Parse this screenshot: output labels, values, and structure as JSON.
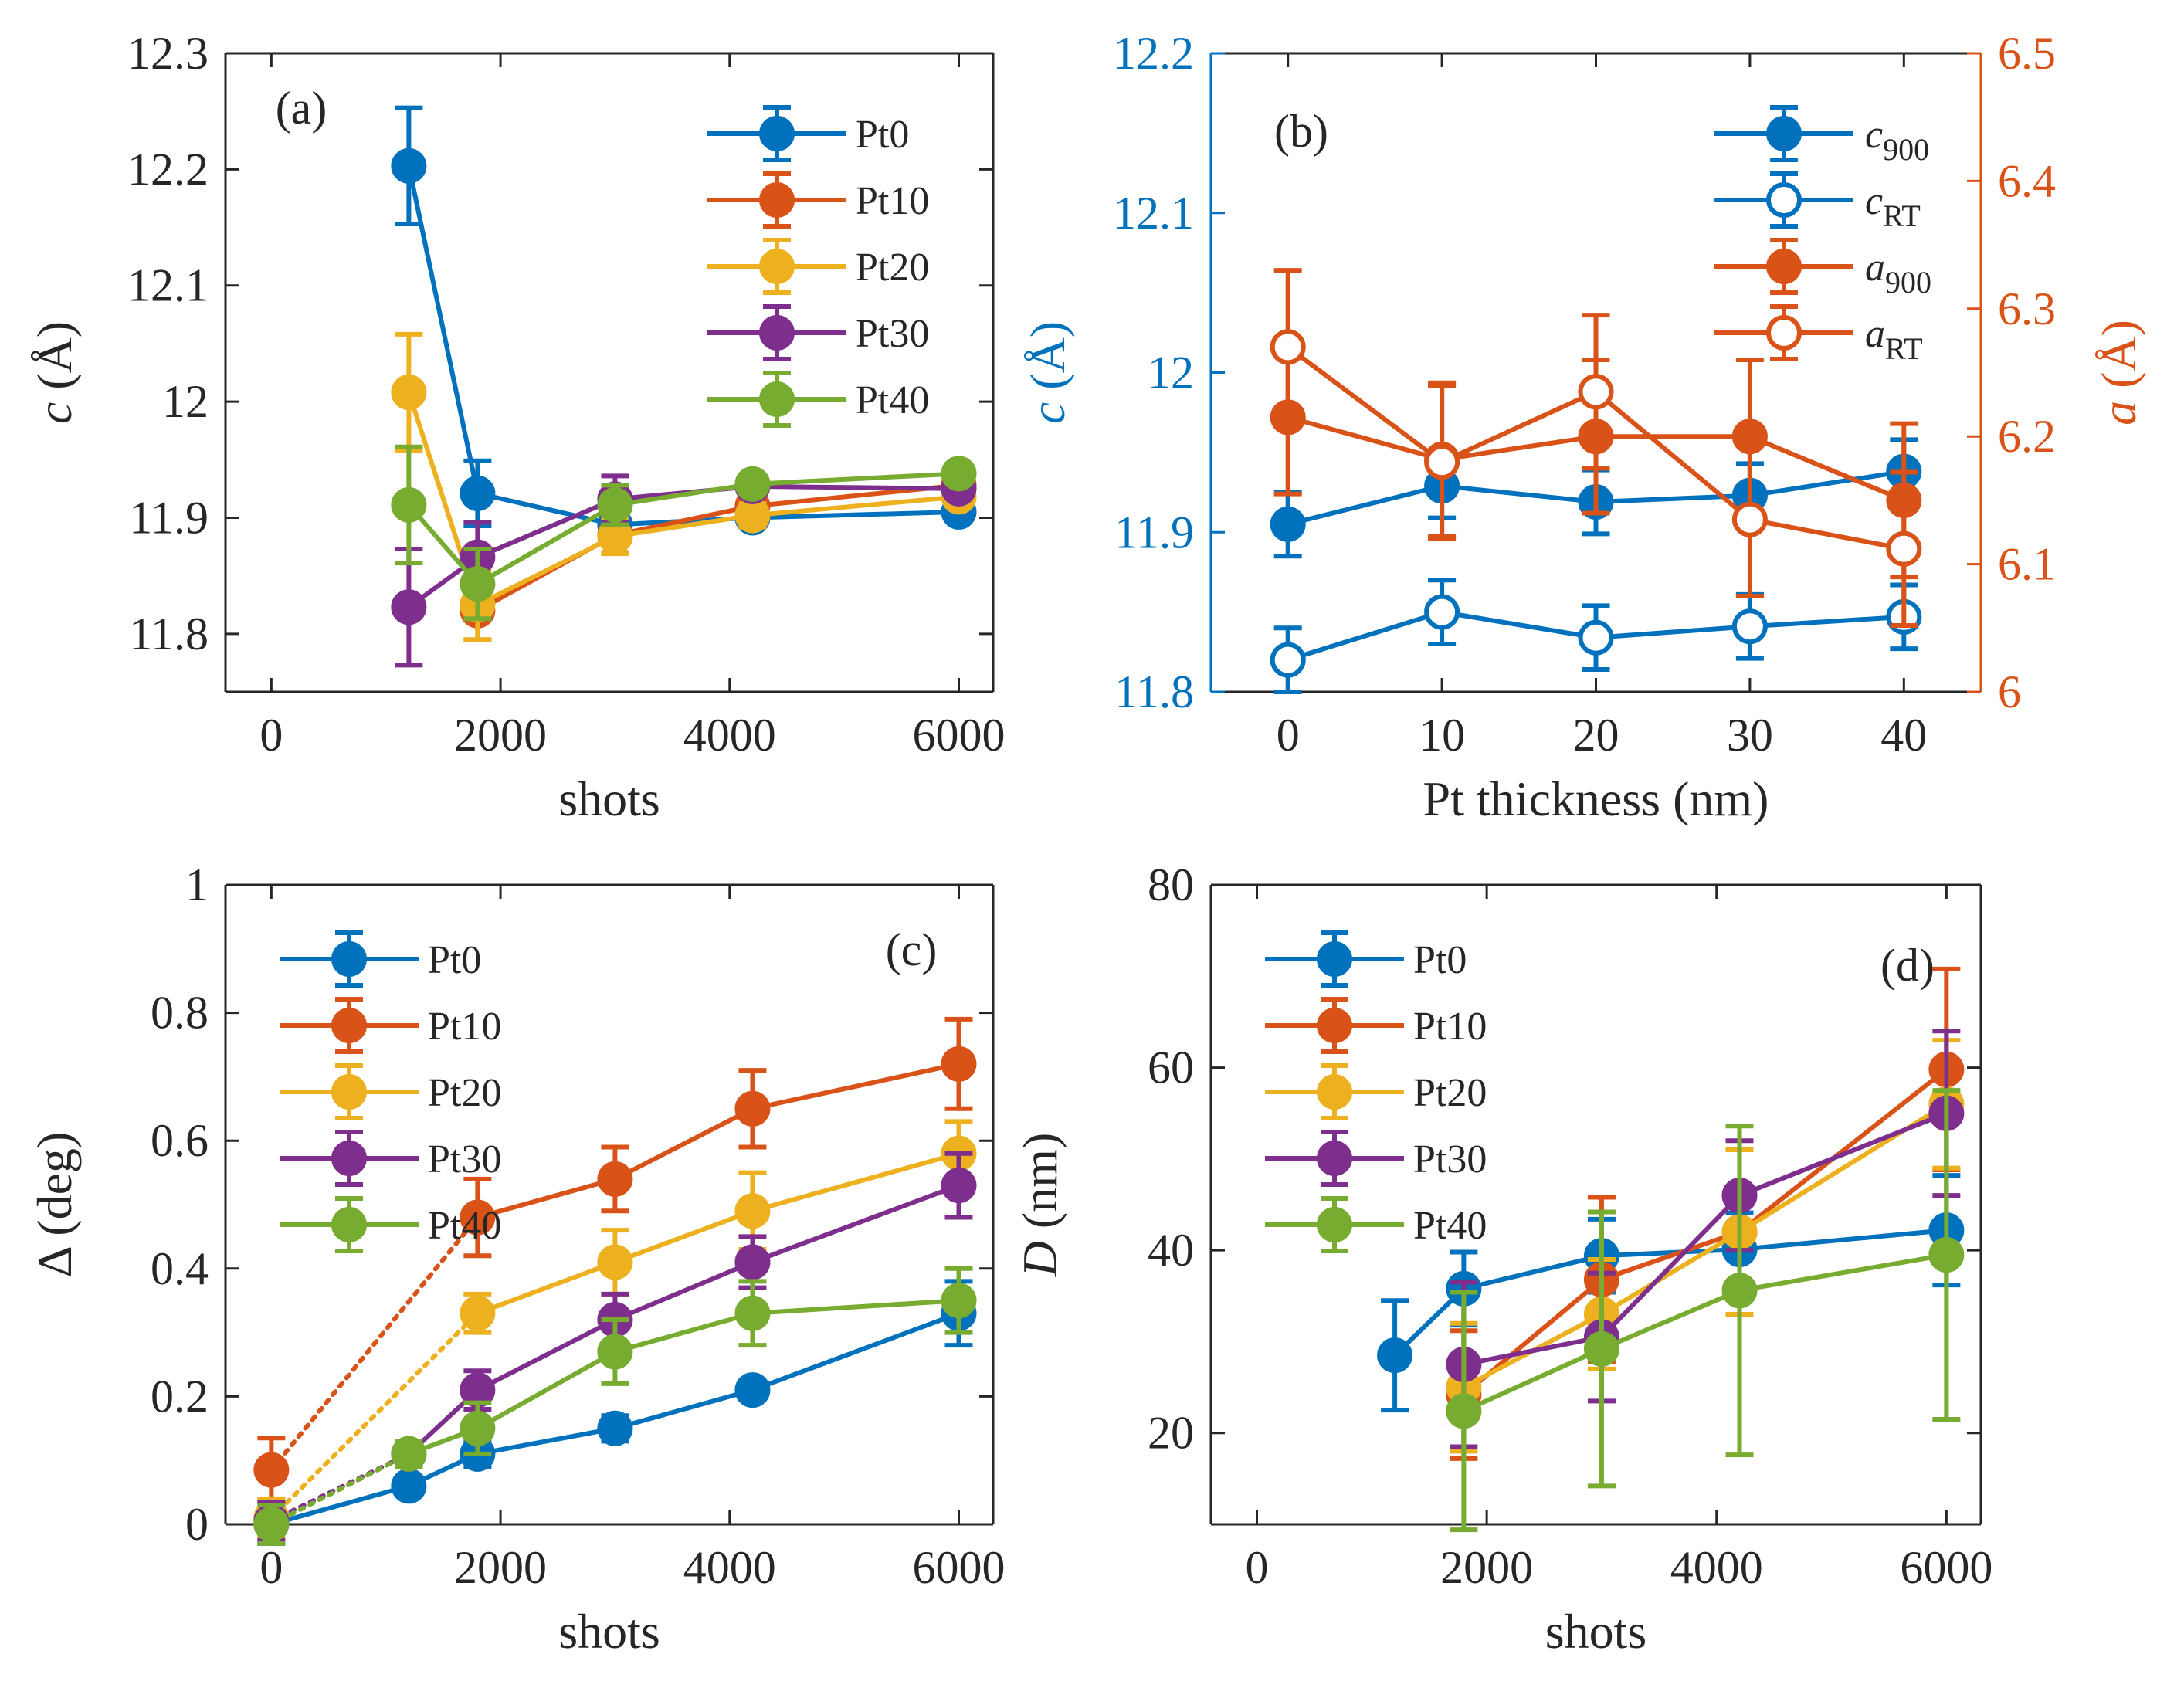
{
  "colors": {
    "Pt0": "#0072BD",
    "Pt10": "#D95319",
    "Pt20": "#EDB120",
    "Pt30": "#7E2F8E",
    "Pt40": "#77AC30",
    "axis": "#262626"
  },
  "chart_data": [
    {
      "id": "a",
      "type": "line",
      "panel_label": "(a)",
      "xlabel": "shots",
      "ylabel_var": "c",
      "ylabel_unit": " (Å)",
      "xlim": [
        -400,
        6300
      ],
      "ylim": [
        11.75,
        12.3
      ],
      "xticks": [
        0,
        2000,
        4000,
        6000
      ],
      "xtick_labels": [
        "0",
        "2000",
        "4000",
        "6000"
      ],
      "yticks": [
        11.8,
        11.9,
        12,
        12.1,
        12.2,
        12.3
      ],
      "ytick_labels": [
        "11.8",
        "11.9",
        "12",
        "12.1",
        "12.2",
        "12.3"
      ],
      "legend": {
        "position": "top-right",
        "entries": [
          "Pt0",
          "Pt10",
          "Pt20",
          "Pt30",
          "Pt40"
        ]
      },
      "series": [
        {
          "name": "Pt0",
          "x": [
            1200,
            1800,
            3000,
            4200,
            6000
          ],
          "y": [
            12.203,
            11.921,
            11.894,
            11.9,
            11.905
          ],
          "err": [
            0.05,
            0.028,
            0.015,
            0.007,
            0.007
          ]
        },
        {
          "name": "Pt10",
          "x": [
            1800,
            3000,
            4200,
            6000
          ],
          "y": [
            11.82,
            11.885,
            11.91,
            11.928
          ],
          "err": [
            0.025,
            0.015,
            0.007,
            0.007
          ]
        },
        {
          "name": "Pt20",
          "x": [
            1200,
            1800,
            3000,
            4200,
            6000
          ],
          "y": [
            12.008,
            11.825,
            11.884,
            11.902,
            11.918
          ],
          "err": [
            0.05,
            0.03,
            0.015,
            0.01,
            0.008
          ]
        },
        {
          "name": "Pt30",
          "x": [
            1200,
            1800,
            3000,
            4200,
            6000
          ],
          "y": [
            11.823,
            11.866,
            11.916,
            11.927,
            11.925
          ],
          "err": [
            0.05,
            0.03,
            0.02,
            0.007,
            0.007
          ]
        },
        {
          "name": "Pt40",
          "x": [
            1200,
            1800,
            3000,
            4200,
            6000
          ],
          "y": [
            11.911,
            11.843,
            11.911,
            11.929,
            11.938
          ],
          "err": [
            0.05,
            0.03,
            0.017,
            0.008,
            0.008
          ]
        }
      ]
    },
    {
      "id": "b",
      "type": "line",
      "panel_label": "(b)",
      "xlabel": "Pt thickness (nm)",
      "ylabel_var": "c",
      "ylabel_unit": " (Å)",
      "ylabel_right_var": "a",
      "ylabel_right_unit": " (Å)",
      "xlim": [
        -5,
        45
      ],
      "ylim": [
        11.8,
        12.2
      ],
      "ylim_right": [
        6.0,
        6.5
      ],
      "xticks": [
        0,
        10,
        20,
        30,
        40
      ],
      "xtick_labels": [
        "0",
        "10",
        "20",
        "30",
        "40"
      ],
      "yticks": [
        11.8,
        11.9,
        12,
        12.1,
        12.2
      ],
      "ytick_labels": [
        "11.8",
        "11.9",
        "12",
        "12.1",
        "12.2"
      ],
      "yticks_right": [
        6.0,
        6.1,
        6.2,
        6.3,
        6.4,
        6.5
      ],
      "ytick_labels_right": [
        "6",
        "6.1",
        "6.2",
        "6.3",
        "6.4",
        "6.5"
      ],
      "legend": {
        "position": "top-right",
        "entries": [
          {
            "var": "c",
            "sub": "900"
          },
          {
            "var": "c",
            "sub": "RT"
          },
          {
            "var": "a",
            "sub": "900"
          },
          {
            "var": "a",
            "sub": "RT"
          }
        ]
      },
      "series": [
        {
          "name": "c900",
          "axis": "left",
          "color": "#0072BD",
          "filled": true,
          "x": [
            0,
            10,
            20,
            30,
            40
          ],
          "y": [
            11.905,
            11.929,
            11.919,
            11.923,
            11.938
          ],
          "err": [
            0.02,
            0.02,
            0.02,
            0.02,
            0.02
          ]
        },
        {
          "name": "cRT",
          "axis": "left",
          "color": "#0072BD",
          "filled": false,
          "x": [
            0,
            10,
            20,
            30,
            40
          ],
          "y": [
            11.82,
            11.85,
            11.834,
            11.841,
            11.847
          ],
          "err": [
            0.02,
            0.02,
            0.02,
            0.02,
            0.02
          ]
        },
        {
          "name": "a900",
          "axis": "right",
          "color": "#D95319",
          "filled": true,
          "x": [
            0,
            10,
            20,
            30,
            40
          ],
          "y": [
            6.215,
            6.182,
            6.2,
            6.2,
            6.15
          ],
          "err": [
            0.06,
            0.06,
            0.06,
            0.06,
            0.06
          ]
        },
        {
          "name": "aRT",
          "axis": "right",
          "color": "#D95319",
          "filled": false,
          "x": [
            0,
            10,
            20,
            30,
            40
          ],
          "y": [
            6.27,
            6.18,
            6.235,
            6.135,
            6.112
          ],
          "err": [
            0.06,
            0.06,
            0.06,
            0.06,
            0.06
          ]
        }
      ]
    },
    {
      "id": "c",
      "type": "line",
      "panel_label": "(c)",
      "xlabel": "shots",
      "ylabel_var": "Δ",
      "ylabel_unit": " (deg)",
      "xlim": [
        -400,
        6300
      ],
      "ylim": [
        0,
        1
      ],
      "xticks": [
        0,
        2000,
        4000,
        6000
      ],
      "xtick_labels": [
        "0",
        "2000",
        "4000",
        "6000"
      ],
      "yticks": [
        0,
        0.2,
        0.4,
        0.6,
        0.8,
        1
      ],
      "ytick_labels": [
        "0",
        "0.2",
        "0.4",
        "0.6",
        "0.8",
        "1"
      ],
      "legend": {
        "position": "top-left",
        "entries": [
          "Pt0",
          "Pt10",
          "Pt20",
          "Pt30",
          "Pt40"
        ]
      },
      "series": [
        {
          "name": "Pt0",
          "x": [
            0,
            1200,
            1800,
            3000,
            4200,
            6000
          ],
          "y": [
            0.0,
            0.06,
            0.11,
            0.15,
            0.21,
            0.33
          ],
          "err": [
            0.03,
            0.01,
            0.02,
            0.02,
            0.015,
            0.05
          ],
          "dotted_segment": false
        },
        {
          "name": "Pt10",
          "x": [
            0,
            1800,
            3000,
            4200,
            6000
          ],
          "y": [
            0.085,
            0.48,
            0.54,
            0.65,
            0.72
          ],
          "err": [
            0.05,
            0.06,
            0.05,
            0.06,
            0.07
          ],
          "dotted_segment": true
        },
        {
          "name": "Pt20",
          "x": [
            0,
            1800,
            3000,
            4200,
            6000
          ],
          "y": [
            0.01,
            0.33,
            0.41,
            0.49,
            0.58
          ],
          "err": [
            0.03,
            0.03,
            0.05,
            0.06,
            0.05
          ],
          "dotted_segment": true
        },
        {
          "name": "Pt30",
          "x": [
            0,
            1200,
            1800,
            3000,
            4200,
            6000
          ],
          "y": [
            0.005,
            0.11,
            0.21,
            0.32,
            0.41,
            0.53
          ],
          "err": [
            0.03,
            0.02,
            0.03,
            0.04,
            0.04,
            0.05
          ],
          "dotted_segment": true
        },
        {
          "name": "Pt40",
          "x": [
            0,
            1200,
            1800,
            3000,
            4200,
            6000
          ],
          "y": [
            0.0,
            0.11,
            0.15,
            0.27,
            0.33,
            0.35
          ],
          "err": [
            0.03,
            0.02,
            0.04,
            0.05,
            0.05,
            0.05
          ],
          "dotted_segment": true
        }
      ]
    },
    {
      "id": "d",
      "type": "line",
      "panel_label": "(d)",
      "xlabel": "shots",
      "ylabel_var": "D",
      "ylabel_unit": " (nm)",
      "xlim": [
        -400,
        6300
      ],
      "ylim": [
        10,
        80
      ],
      "xticks": [
        0,
        2000,
        4000,
        6000
      ],
      "xtick_labels": [
        "0",
        "2000",
        "4000",
        "6000"
      ],
      "yticks": [
        20,
        40,
        60,
        80
      ],
      "ytick_labels": [
        "20",
        "40",
        "60",
        "80"
      ],
      "legend": {
        "position": "top-left",
        "entries": [
          "Pt0",
          "Pt10",
          "Pt20",
          "Pt30",
          "Pt40"
        ]
      },
      "series": [
        {
          "name": "Pt0",
          "x": [
            1200,
            1800,
            3000,
            4200,
            6000
          ],
          "y": [
            28.5,
            35.8,
            39.4,
            40.1,
            42.2
          ],
          "err": [
            6,
            4,
            4,
            4,
            6
          ]
        },
        {
          "name": "Pt10",
          "x": [
            1800,
            3000,
            4200,
            6000
          ],
          "y": [
            24.2,
            36.8,
            42.0,
            59.8
          ],
          "err": [
            7,
            9,
            9,
            11
          ]
        },
        {
          "name": "Pt20",
          "x": [
            1800,
            3000,
            4200,
            6000
          ],
          "y": [
            25.0,
            33.0,
            42.0,
            56.0
          ],
          "err": [
            7,
            6,
            9,
            7
          ]
        },
        {
          "name": "Pt30",
          "x": [
            1800,
            3000,
            4200,
            6000
          ],
          "y": [
            27.5,
            30.5,
            46.0,
            55.0
          ],
          "err": [
            9,
            7,
            6,
            9
          ]
        },
        {
          "name": "Pt40",
          "x": [
            1800,
            3000,
            4200,
            6000
          ],
          "y": [
            22.4,
            29.2,
            35.6,
            39.5
          ],
          "err": [
            13,
            15,
            18,
            18
          ]
        }
      ]
    }
  ]
}
